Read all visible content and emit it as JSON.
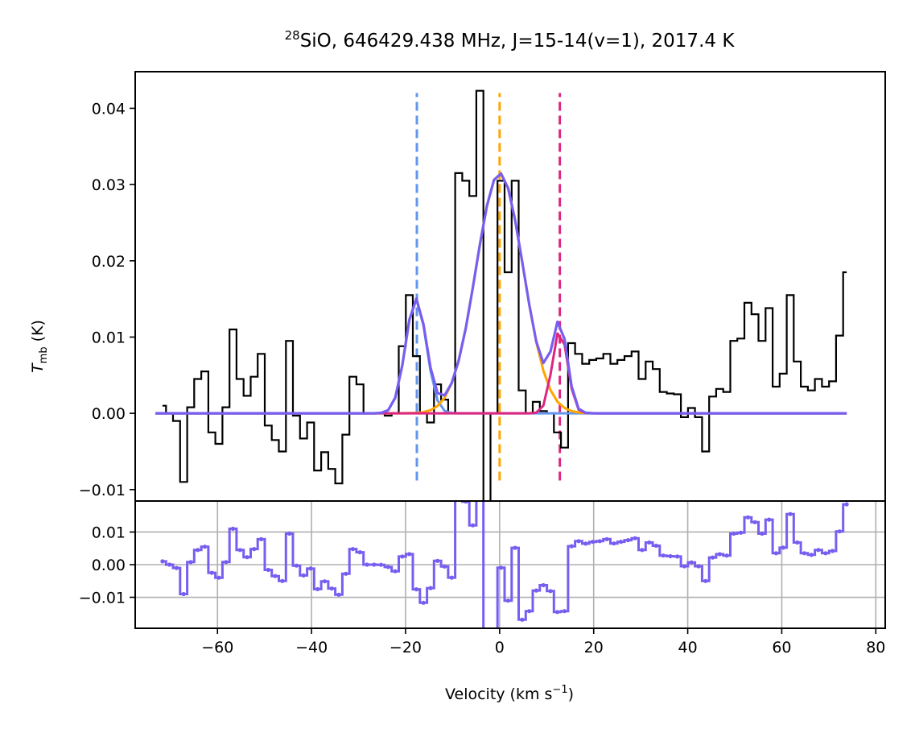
{
  "chart_data": [
    {
      "type": "line",
      "panel": "spectrum",
      "title_isotope": "28",
      "title_text": "SiO, 646429.438 MHz, J=15-14(v=1), 2017.4 K",
      "ylabel_main": "T",
      "ylabel_sub": "mb",
      "ylabel_unit": " (K)",
      "xlim": [
        -77.5,
        82
      ],
      "ylim": [
        -0.0115,
        0.0448
      ],
      "yticks": [
        -0.01,
        0.0,
        0.01,
        0.02,
        0.03,
        0.04
      ],
      "ytick_labels": [
        "−0.01",
        "0.00",
        "0.01",
        "0.02",
        "0.03",
        "0.04"
      ],
      "grid": false,
      "series": [
        {
          "name": "observed spectrum",
          "style": "steps-mid",
          "color": "#000000",
          "x": [
            -71.7,
            -70.2,
            -68.7,
            -67.2,
            -65.7,
            -64.2,
            -62.7,
            -61.2,
            -59.7,
            -58.2,
            -56.7,
            -55.2,
            -53.7,
            -52.2,
            -50.7,
            -49.2,
            -47.7,
            -46.2,
            -44.7,
            -43.2,
            -41.7,
            -40.2,
            -38.7,
            -37.2,
            -35.7,
            -34.2,
            -32.7,
            -31.2,
            -29.7,
            -28.2,
            -26.7,
            -25.2,
            -23.7,
            -22.2,
            -20.7,
            -19.2,
            -17.7,
            -16.2,
            -14.7,
            -13.2,
            -11.7,
            -10.2,
            -8.7,
            -7.2,
            -5.7,
            -4.2,
            -2.7,
            -1.2,
            0.3,
            1.8,
            3.3,
            4.8,
            6.3,
            7.8,
            9.3,
            10.8,
            12.3,
            13.8,
            15.3,
            16.8,
            18.3,
            19.8,
            21.3,
            22.8,
            24.3,
            25.8,
            27.3,
            28.8,
            30.3,
            31.8,
            33.3,
            34.8,
            36.3,
            37.8,
            39.3,
            40.8,
            42.3,
            43.8,
            45.3,
            46.8,
            48.3,
            49.8,
            51.3,
            52.8,
            54.3,
            55.8,
            57.3,
            58.8,
            60.3,
            61.8,
            63.3,
            64.8,
            66.3,
            67.8,
            69.3,
            70.8,
            72.3,
            73.8
          ],
          "y": [
            0.001,
            0.0,
            -0.001,
            -0.009,
            0.0008,
            0.0045,
            0.0055,
            -0.0025,
            -0.004,
            0.0008,
            0.011,
            0.0045,
            0.0023,
            0.0048,
            0.0078,
            -0.0016,
            -0.0035,
            -0.005,
            0.0095,
            -0.0003,
            -0.0033,
            -0.0012,
            -0.0075,
            -0.0051,
            -0.0073,
            -0.0092,
            -0.0028,
            0.0048,
            0.0038,
            0.0,
            0.0,
            0.0,
            -0.0003,
            0.0,
            0.0088,
            0.0155,
            0.0075,
            0.0,
            -0.0012,
            0.0038,
            0.0018,
            0.0,
            0.0315,
            0.0305,
            0.0285,
            0.0423,
            -0.0118,
            0.0,
            0.0305,
            0.0185,
            0.0305,
            0.003,
            0.0,
            0.0015,
            0.0003,
            0.0,
            -0.0025,
            -0.0045,
            0.0092,
            0.0078,
            0.0065,
            0.007,
            0.0072,
            0.0078,
            0.0065,
            0.007,
            0.0075,
            0.0081,
            0.0045,
            0.0068,
            0.0058,
            0.0028,
            0.0026,
            0.0025,
            -0.0005,
            0.0007,
            -0.0005,
            -0.005,
            0.0022,
            0.0032,
            0.0028,
            0.0095,
            0.0098,
            0.0145,
            0.013,
            0.0095,
            0.0138,
            0.0035,
            0.0052,
            0.0155,
            0.0068,
            0.0035,
            0.003,
            0.0045,
            0.0035,
            0.0042,
            0.0102,
            0.0185
          ]
        },
        {
          "name": "gaussian component 1",
          "style": "line",
          "color": "#6495ed",
          "amplitude": 0.015,
          "center": -17.8,
          "sigma": 2.2
        },
        {
          "name": "gaussian component 2",
          "style": "line",
          "color": "#ffa500",
          "amplitude": 0.0315,
          "center": 0.0,
          "sigma": 5.0
        },
        {
          "name": "gaussian component 3",
          "style": "line",
          "color": "#dc267f",
          "amplitude": 0.011,
          "center": 12.8,
          "sigma": 1.6
        },
        {
          "name": "total fit",
          "style": "line",
          "color": "#785ef0",
          "x_start": -73.2,
          "x_end": 74.5,
          "x_step": 1.5
        }
      ],
      "vlines": [
        {
          "x": -17.6,
          "color": "#6495ed",
          "ymin": -0.0088,
          "ymax": 0.042
        },
        {
          "x": 0.0,
          "color": "#ffa500",
          "ymin": -0.0088,
          "ymax": 0.042
        },
        {
          "x": 12.8,
          "color": "#dc267f",
          "ymin": -0.0088,
          "ymax": 0.042
        }
      ]
    },
    {
      "type": "line",
      "panel": "residuals",
      "xlim": [
        -77.5,
        82
      ],
      "ylim": [
        -0.0195,
        0.0195
      ],
      "xticks": [
        -60,
        -40,
        -20,
        0,
        20,
        40,
        60,
        80
      ],
      "xtick_labels": [
        "−60",
        "−40",
        "−20",
        "0",
        "20",
        "40",
        "60",
        "80"
      ],
      "yticks": [
        -0.01,
        0.0,
        0.01
      ],
      "ytick_labels": [
        "−0.01",
        "0.00",
        "0.01"
      ],
      "xlabel_main": "Velocity (km s",
      "xlabel_sup": "−1",
      "xlabel_end": ")",
      "grid": true,
      "series": [
        {
          "name": "residuals",
          "style": "steps-mid markers",
          "color": "#785ef0",
          "derived_from": "observed spectrum minus total fit"
        }
      ]
    }
  ]
}
